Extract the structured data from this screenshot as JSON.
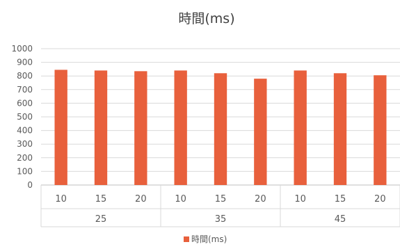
{
  "chart_data": {
    "type": "bar",
    "title": "時間(ms)",
    "legend_position": "bottom",
    "grid": true,
    "ylim": [
      0,
      1000
    ],
    "yticks": [
      0,
      100,
      200,
      300,
      400,
      500,
      600,
      700,
      800,
      900,
      1000
    ],
    "groups": [
      {
        "label": "25",
        "categories": [
          "10",
          "15",
          "20"
        ]
      },
      {
        "label": "35",
        "categories": [
          "10",
          "15",
          "20"
        ]
      },
      {
        "label": "45",
        "categories": [
          "10",
          "15",
          "20"
        ]
      }
    ],
    "series": [
      {
        "name": "時間(ms)",
        "color": "#E8603C",
        "values": [
          845,
          840,
          835,
          840,
          820,
          780,
          840,
          820,
          805
        ]
      }
    ]
  }
}
